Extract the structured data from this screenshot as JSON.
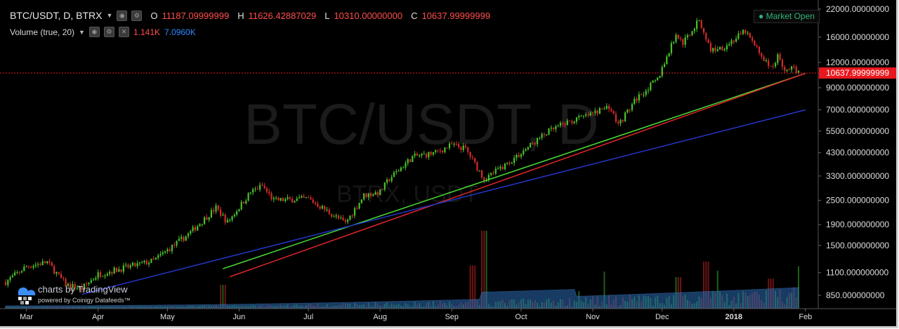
{
  "header": {
    "symbol": "BTC/USDT, D, BTRX",
    "o_label": "O",
    "o_value": "11187.09999999",
    "h_label": "H",
    "h_value": "11626.42887029",
    "l_label": "L",
    "l_value": "10310.00000000",
    "c_label": "C",
    "c_value": "10637.99999999",
    "volume_label": "Volume (true, 20)",
    "volume_value": "1.141K",
    "volume_ma": "7.0960K"
  },
  "market_status": "Market Open",
  "watermark": {
    "main": "BTC/USDT, D",
    "sub": "BTRX, USDT"
  },
  "branding": {
    "line1": "charts by TradingView",
    "line2": "powered by Coinigy Datafeeds™"
  },
  "colors": {
    "up": "#48c22a",
    "down": "#d32b2b",
    "volume_ma": "#2b6cb5",
    "trend_green": "#4ade34",
    "trend_red": "#e0262a",
    "trend_blue": "#2436c8",
    "last_price": "#e8181e"
  },
  "chart_data": {
    "type": "candlestick",
    "scale": "log",
    "x_ticks": [
      "Mar",
      "Apr",
      "May",
      "Jun",
      "Jul",
      "Aug",
      "Sep",
      "Oct",
      "Nov",
      "Dec",
      "2018",
      "Feb"
    ],
    "y_ticks": [
      "22000.00000000",
      "16000.00000000",
      "12000.00000000",
      "9000.000000000",
      "7000.000000000",
      "5500.000000000",
      "4300.000000000",
      "3300.000000000",
      "2500.000000000",
      "1900.000000000",
      "1500.000000000",
      "1100.000000000",
      "850.000000000"
    ],
    "y_tick_values": [
      22000,
      16000,
      12000,
      9000,
      7000,
      5500,
      4300,
      3300,
      2500,
      1900,
      1500,
      1100,
      850
    ],
    "last_price_label": "10637.99999999",
    "last_price": 10638,
    "price_path": [
      [
        "2017-02-20",
        990
      ],
      [
        "2017-03-01",
        1180
      ],
      [
        "2017-03-10",
        1240
      ],
      [
        "2017-03-18",
        960
      ],
      [
        "2017-03-25",
        920
      ],
      [
        "2017-04-01",
        1080
      ],
      [
        "2017-04-25",
        1260
      ],
      [
        "2017-05-10",
        1700
      ],
      [
        "2017-05-22",
        2300
      ],
      [
        "2017-05-27",
        1950
      ],
      [
        "2017-06-06",
        2750
      ],
      [
        "2017-06-11",
        2950
      ],
      [
        "2017-06-16",
        2500
      ],
      [
        "2017-07-01",
        2550
      ],
      [
        "2017-07-15",
        2000
      ],
      [
        "2017-07-17",
        1930
      ],
      [
        "2017-07-25",
        2650
      ],
      [
        "2017-08-01",
        2750
      ],
      [
        "2017-08-05",
        3200
      ],
      [
        "2017-08-15",
        4100
      ],
      [
        "2017-08-25",
        4300
      ],
      [
        "2017-09-01",
        4700
      ],
      [
        "2017-09-07",
        4500
      ],
      [
        "2017-09-15",
        3200
      ],
      [
        "2017-09-25",
        3800
      ],
      [
        "2017-10-01",
        4300
      ],
      [
        "2017-10-12",
        5400
      ],
      [
        "2017-10-20",
        6000
      ],
      [
        "2017-11-01",
        6700
      ],
      [
        "2017-11-08",
        7300
      ],
      [
        "2017-11-12",
        5900
      ],
      [
        "2017-11-20",
        8000
      ],
      [
        "2017-11-29",
        9900
      ],
      [
        "2017-12-07",
        16500
      ],
      [
        "2017-12-10",
        15000
      ],
      [
        "2017-12-17",
        19400
      ],
      [
        "2017-12-22",
        13800
      ],
      [
        "2017-12-28",
        14400
      ],
      [
        "2018-01-06",
        17100
      ],
      [
        "2018-01-10",
        14500
      ],
      [
        "2018-01-17",
        11200
      ],
      [
        "2018-01-20",
        12800
      ],
      [
        "2018-01-24",
        10800
      ],
      [
        "2018-01-27",
        11400
      ],
      [
        "2018-01-29",
        10638
      ]
    ],
    "volume_spikes": [
      [
        "2017-05-25",
        0.3
      ],
      [
        "2017-09-15",
        1.0
      ],
      [
        "2017-09-10",
        0.55
      ],
      [
        "2017-12-20",
        0.6
      ],
      [
        "2017-12-08",
        0.4
      ],
      [
        "2018-01-17",
        0.38
      ]
    ],
    "trendlines": [
      {
        "color": "green",
        "from": [
          "2017-05-25",
          1150
        ],
        "to": [
          "2018-02-01",
          10600
        ]
      },
      {
        "color": "red",
        "from": [
          "2017-05-28",
          1050
        ],
        "to": [
          "2018-02-01",
          10600
        ]
      },
      {
        "color": "blue",
        "from": [
          "2017-03-25",
          860
        ],
        "to": [
          "2018-02-01",
          7000
        ]
      }
    ]
  }
}
